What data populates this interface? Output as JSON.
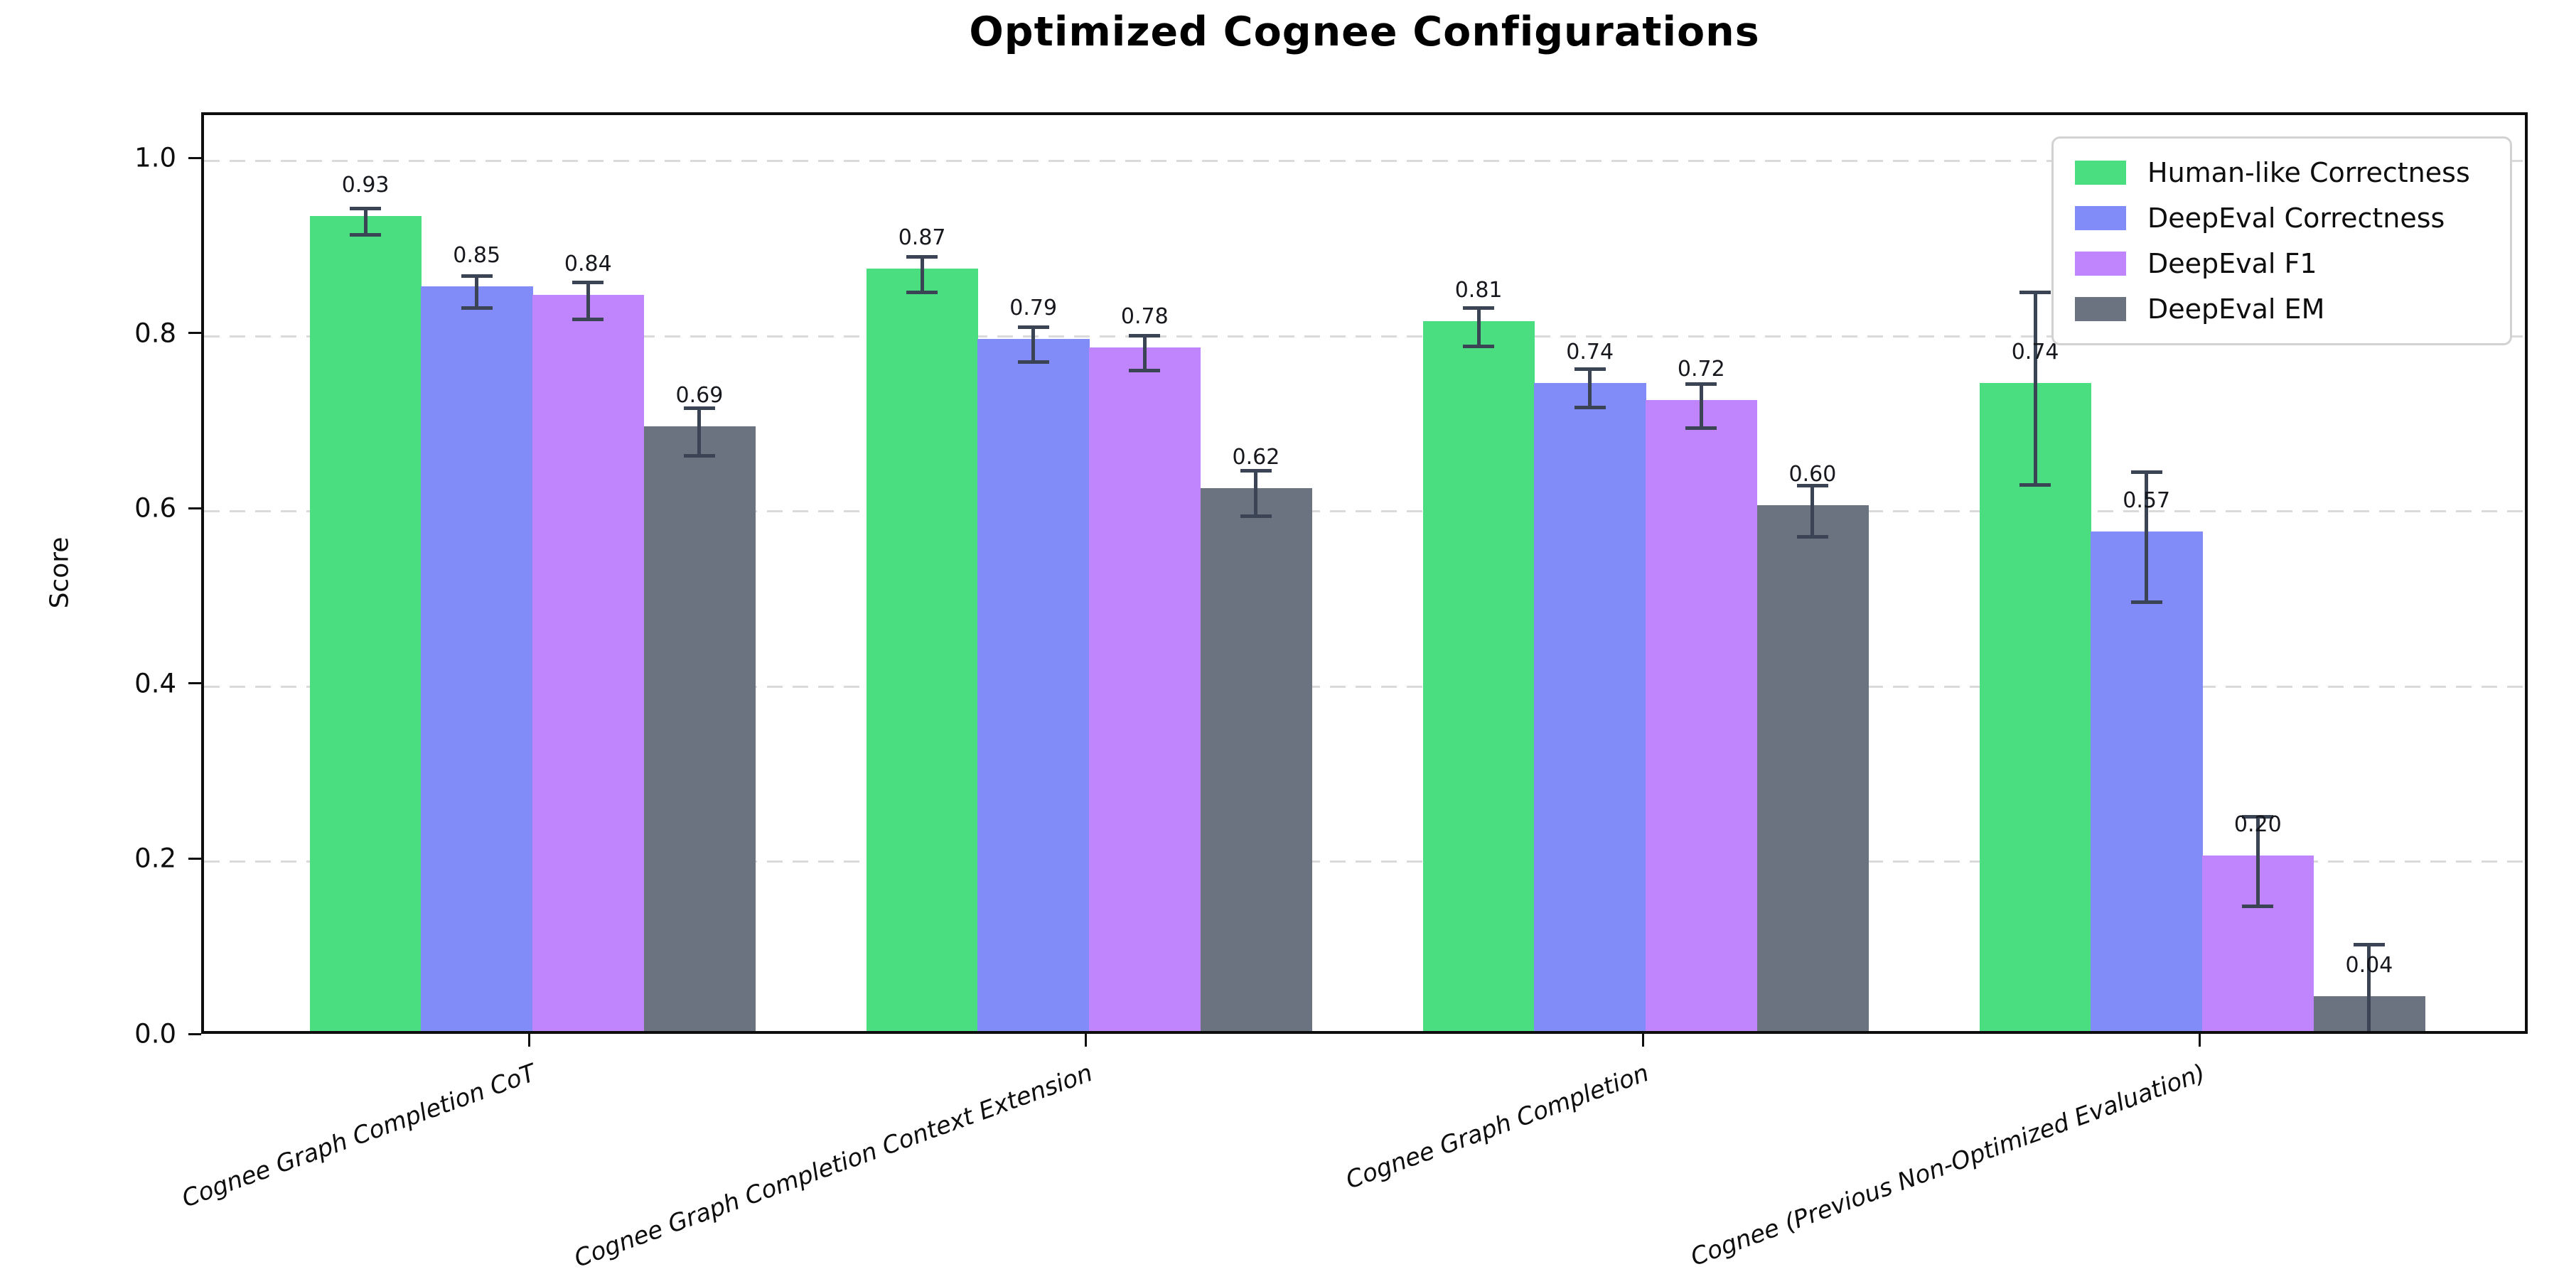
{
  "title": "Optimized Cognee Configurations",
  "chart_data": {
    "type": "bar",
    "title": "Optimized Cognee Configurations",
    "xlabel": "",
    "ylabel": "Score",
    "categories": [
      "Cognee Graph Completion CoT",
      "Cognee Graph Completion Context Extension",
      "Cognee Graph Completion",
      "Cognee (Previous Non-Optimized Evaluation)"
    ],
    "series": [
      {
        "name": "Human-like Correctness",
        "color": "#4ade80",
        "values": [
          0.93,
          0.87,
          0.81,
          0.74
        ],
        "errors": [
          0.015,
          0.02,
          0.022,
          0.11
        ]
      },
      {
        "name": "DeepEval Correctness",
        "color": "#818cf8",
        "values": [
          0.85,
          0.79,
          0.74,
          0.57
        ],
        "errors": [
          0.018,
          0.02,
          0.022,
          0.074
        ]
      },
      {
        "name": "DeepEval F1",
        "color": "#c084fc",
        "values": [
          0.84,
          0.78,
          0.72,
          0.2
        ],
        "errors": [
          0.021,
          0.02,
          0.025,
          0.051
        ]
      },
      {
        "name": "DeepEval EM",
        "color": "#6b7280",
        "values": [
          0.69,
          0.62,
          0.6,
          0.04
        ],
        "errors": [
          0.027,
          0.026,
          0.029,
          0.065
        ]
      }
    ],
    "bar_value_labels": [
      [
        "0.93",
        "0.87",
        "0.81",
        "0.74"
      ],
      [
        "0.85",
        "0.79",
        "0.74",
        "0.57"
      ],
      [
        "0.84",
        "0.78",
        "0.72",
        "0.20"
      ],
      [
        "0.69",
        "0.62",
        "0.60",
        "0.04"
      ]
    ],
    "yticks": [
      "0.0",
      "0.2",
      "0.4",
      "0.6",
      "0.8",
      "1.0"
    ],
    "ytick_values": [
      0.0,
      0.2,
      0.4,
      0.6,
      0.8,
      1.0
    ],
    "ylim": [
      0.0,
      1.052
    ],
    "grid": "horizontal-dashed",
    "gridline_color": "#dadada",
    "error_bar_color": "#3a4454",
    "legend_position": "upper-right",
    "x_tick_rotation_deg": 20
  }
}
